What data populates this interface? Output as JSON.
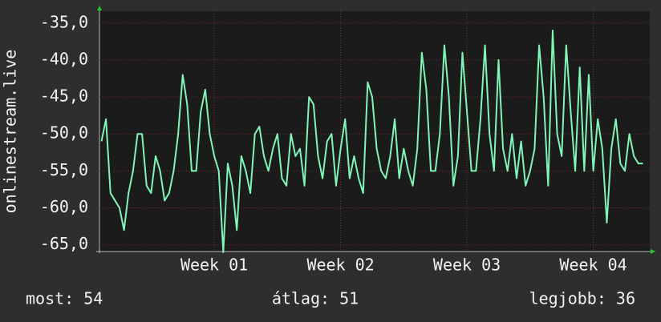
{
  "chart_data": {
    "type": "line",
    "y_label": "onlinestream.live",
    "x": [
      0.75,
      1,
      1.25,
      1.5,
      1.75,
      2,
      2.25,
      2.5,
      2.75,
      3,
      3.25,
      3.5,
      3.75,
      4,
      4.25,
      4.5,
      4.75,
      5,
      5.25,
      5.5,
      5.75,
      6,
      6.25,
      6.5,
      6.75,
      7,
      7.25,
      7.5,
      7.75,
      8,
      8.25,
      8.5,
      8.75,
      9,
      9.25,
      9.5,
      9.75,
      10,
      10.25,
      10.5,
      10.75,
      11,
      11.25,
      11.5,
      11.75,
      12,
      12.25,
      12.5,
      12.75,
      13,
      13.25,
      13.5,
      13.75,
      14,
      14.25,
      14.5,
      14.75,
      15,
      15.25,
      15.5,
      15.75,
      16,
      16.25,
      16.5,
      16.75,
      17,
      17.25,
      17.5,
      17.75,
      18,
      18.25,
      18.5,
      18.75,
      19,
      19.25,
      19.5,
      19.75,
      20,
      20.25,
      20.5,
      20.75,
      21,
      21.25,
      21.5,
      21.75,
      22,
      22.25,
      22.5,
      22.75,
      23,
      23.25,
      23.5,
      23.75,
      24,
      24.25,
      24.5,
      24.75,
      25,
      25.25,
      25.5,
      25.75,
      26,
      26.25,
      26.5,
      26.75,
      27,
      27.25,
      27.5,
      27.75,
      28,
      28.25,
      28.5,
      28.75,
      29,
      29.25,
      29.5,
      29.75,
      30,
      30.25,
      30.5,
      30.75
    ],
    "series": [
      {
        "color": "#80f5b8",
        "values": [
          -51,
          -48,
          -58,
          -59,
          -60,
          -63,
          -58,
          -55,
          -50,
          -50,
          -57,
          -58,
          -53,
          -55,
          -59,
          -58,
          -55,
          -50,
          -42,
          -46,
          -55,
          -55,
          -47,
          -44,
          -50,
          -53,
          -55,
          -66,
          -54,
          -57,
          -63,
          -53,
          -55,
          -58,
          -50,
          -49,
          -53,
          -55,
          -52,
          -50,
          -56,
          -57,
          -50,
          -53,
          -52,
          -57,
          -45,
          -46,
          -53,
          -56,
          -51,
          -50,
          -57,
          -52,
          -48,
          -56,
          -53,
          -56,
          -58,
          -43,
          -45,
          -52,
          -55,
          -56,
          -53,
          -48,
          -56,
          -52,
          -55,
          -57,
          -52,
          -39,
          -44,
          -55,
          -55,
          -50,
          -38,
          -45,
          -57,
          -53,
          -39,
          -47,
          -55,
          -55,
          -48,
          -38,
          -50,
          -55,
          -40,
          -52,
          -55,
          -50,
          -56,
          -51,
          -57,
          -55,
          -52,
          -38,
          -45,
          -57,
          -36,
          -50,
          -53,
          -38,
          -47,
          -55,
          -41,
          -55,
          -42,
          -55,
          -48,
          -52,
          -62,
          -52,
          -48,
          -54,
          -55,
          -50,
          -53,
          -54,
          -54
        ]
      }
    ],
    "xlim": [
      0.64,
      31.13
    ],
    "xticks": [
      {
        "value": 7,
        "label": "Week 01"
      },
      {
        "value": 14,
        "label": "Week 02"
      },
      {
        "value": 21,
        "label": "Week 03"
      },
      {
        "value": 28,
        "label": "Week 04"
      }
    ],
    "ylim": [
      -65.9,
      -33.4
    ],
    "yticks": [
      {
        "value": -65,
        "label": "-65,0"
      },
      {
        "value": -60,
        "label": "-60,0"
      },
      {
        "value": -55,
        "label": "-55,0"
      },
      {
        "value": -50,
        "label": "-50,0"
      },
      {
        "value": -45,
        "label": "-45,0"
      },
      {
        "value": -40,
        "label": "-40,0"
      },
      {
        "value": -35,
        "label": "-35,0"
      }
    ],
    "grid": true,
    "footer": [
      "most: 54",
      "átlag: 51",
      "legjobb: 36"
    ]
  }
}
